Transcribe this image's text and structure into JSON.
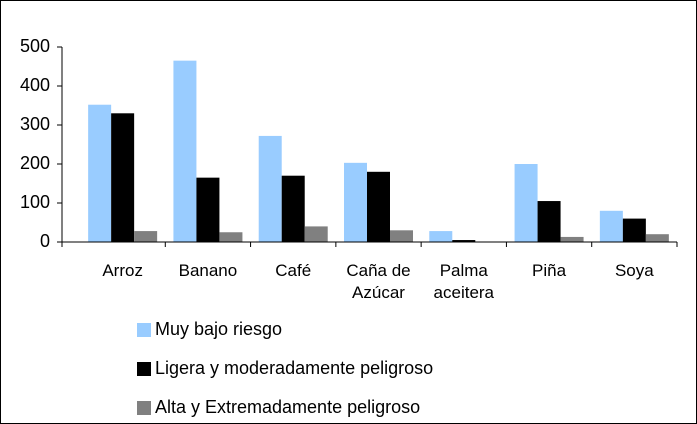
{
  "chart_data": {
    "type": "bar",
    "categories": [
      "Arroz",
      "Banano",
      "Café",
      "Caña de Azúcar",
      "Palma aceitera",
      "Piña",
      "Soya"
    ],
    "series": [
      {
        "name": "Muy bajo riesgo",
        "color": "#99ccff",
        "values": [
          352,
          465,
          272,
          203,
          28,
          200,
          80
        ]
      },
      {
        "name": "Ligera y moderadamente peligroso",
        "color": "#000000",
        "values": [
          330,
          165,
          170,
          180,
          5,
          105,
          60
        ]
      },
      {
        "name": "Alta y Extremadamente peligroso",
        "color": "#808080",
        "values": [
          28,
          25,
          40,
          30,
          0,
          13,
          20
        ]
      }
    ],
    "ylim": [
      0,
      500
    ],
    "yticks": [
      0,
      100,
      200,
      300,
      400,
      500
    ],
    "grid": false
  }
}
